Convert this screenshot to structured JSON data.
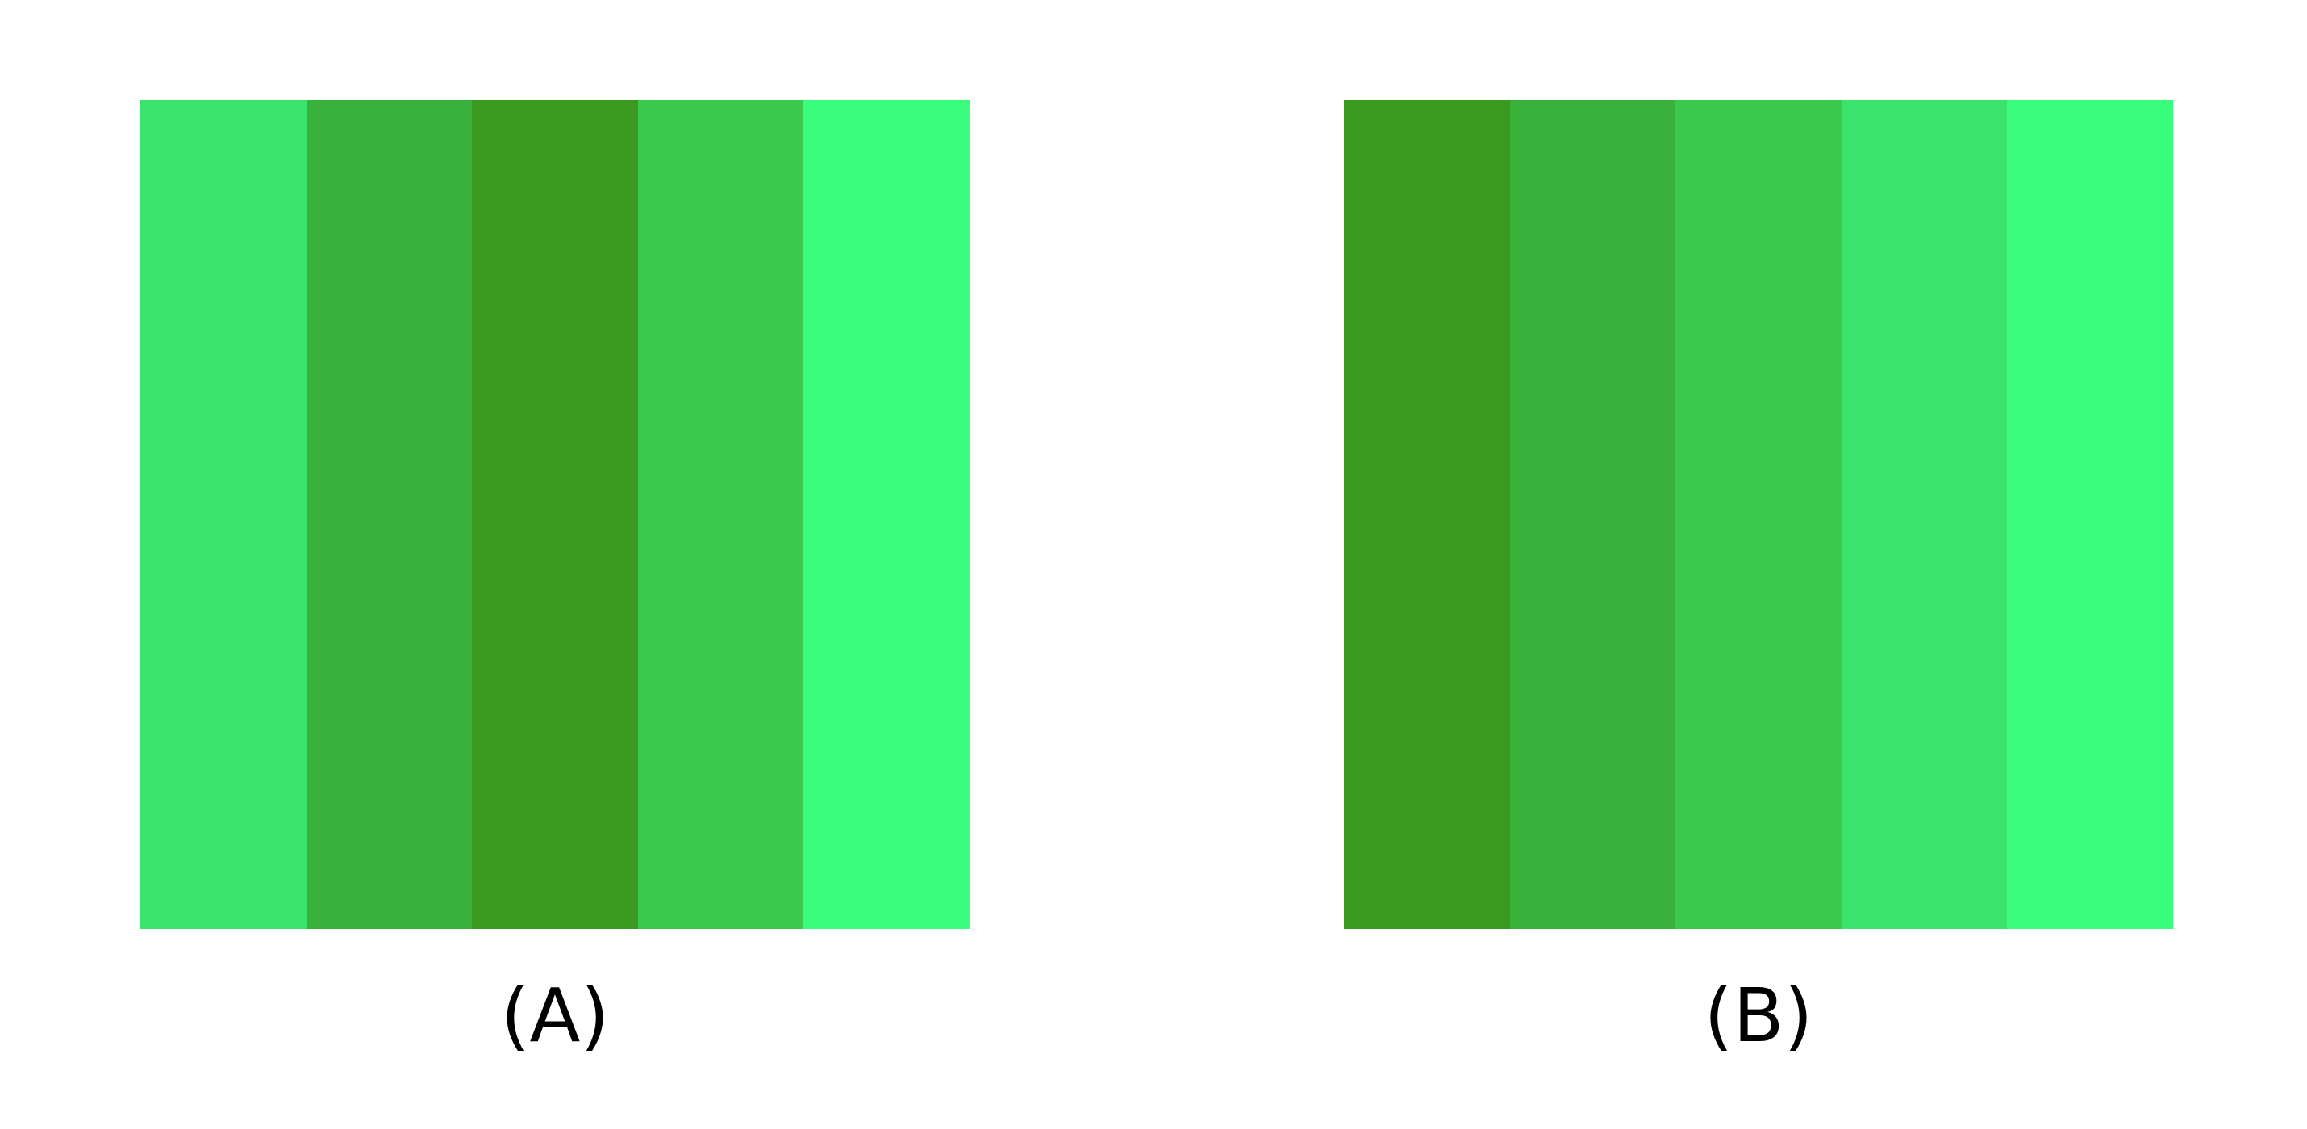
{
  "panels": [
    {
      "label": "(A)",
      "stripes": [
        "#3ae36b",
        "#3ab13a",
        "#3a9a20",
        "#3ac84d",
        "#3afd7d"
      ]
    },
    {
      "label": "(B)",
      "stripes": [
        "#3a9a20",
        "#3ab13a",
        "#3ac84d",
        "#3ae36b",
        "#3afd7d"
      ]
    }
  ]
}
